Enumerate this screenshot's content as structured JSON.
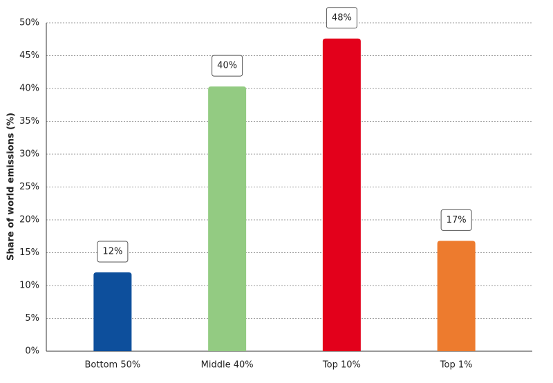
{
  "chart_data": {
    "type": "bar",
    "y_label": "Share of world emissions (%)",
    "categories": [
      "Bottom 50%",
      "Middle 40%",
      "Top 10%",
      "Top 1%"
    ],
    "values": [
      12,
      40.3,
      47.6,
      16.8
    ],
    "value_labels": [
      "12%",
      "40%",
      "48%",
      "17%"
    ],
    "colors": [
      "#0d4f9c",
      "#93cb82",
      "#e3001b",
      "#ed7b2e"
    ],
    "ylim": [
      0,
      50
    ],
    "yticks": [
      {
        "value": 0,
        "label": "0%"
      },
      {
        "value": 5,
        "label": "5%"
      },
      {
        "value": 10,
        "label": "10%"
      },
      {
        "value": 15,
        "label": "15%"
      },
      {
        "value": 20,
        "label": "20%"
      },
      {
        "value": 25,
        "label": "25%"
      },
      {
        "value": 30,
        "label": "30%"
      },
      {
        "value": 35,
        "label": "35%"
      },
      {
        "value": 40,
        "label": "40%"
      },
      {
        "value": 45,
        "label": "45%"
      },
      {
        "value": 50,
        "label": "50%"
      }
    ],
    "grid": true
  }
}
